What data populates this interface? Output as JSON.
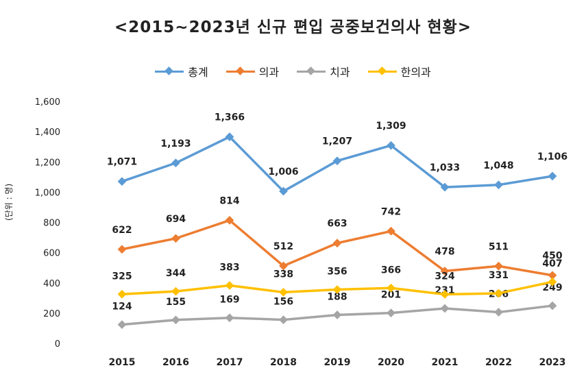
{
  "chart_data": {
    "type": "line",
    "title": "<2015~2023년 신규 편입 공중보건의사 현황>",
    "ylabel": "(단위 : 명)",
    "xlabel": "",
    "categories": [
      "2015",
      "2016",
      "2017",
      "2018",
      "2019",
      "2020",
      "2021",
      "2022",
      "2023"
    ],
    "ylim": [
      0,
      1600
    ],
    "yticks": [
      "0",
      "200",
      "400",
      "600",
      "800",
      "1,000",
      "1,200",
      "1,400",
      "1,600"
    ],
    "series": [
      {
        "name": "총계",
        "color": "#5B9BD5",
        "values": [
          1071,
          1193,
          1366,
          1006,
          1207,
          1309,
          1033,
          1048,
          1106
        ],
        "labels": [
          "1,071",
          "1,193",
          "1,366",
          "1,006",
          "1,207",
          "1,309",
          "1,033",
          "1,048",
          "1,106"
        ]
      },
      {
        "name": "의과",
        "color": "#ED7D31",
        "values": [
          622,
          694,
          814,
          512,
          663,
          742,
          478,
          511,
          450
        ],
        "labels": [
          "622",
          "694",
          "814",
          "512",
          "663",
          "742",
          "478",
          "511",
          "450"
        ]
      },
      {
        "name": "치과",
        "color": "#A5A5A5",
        "values": [
          124,
          155,
          169,
          156,
          188,
          201,
          231,
          206,
          249
        ],
        "labels": [
          "124",
          "155",
          "169",
          "156",
          "188",
          "201",
          "231",
          "206",
          "249"
        ]
      },
      {
        "name": "한의과",
        "color": "#FFC000",
        "values": [
          325,
          344,
          383,
          338,
          356,
          366,
          324,
          331,
          407
        ],
        "labels": [
          "325",
          "344",
          "383",
          "338",
          "356",
          "366",
          "324",
          "331",
          "407"
        ]
      }
    ],
    "legend_position": "top"
  }
}
